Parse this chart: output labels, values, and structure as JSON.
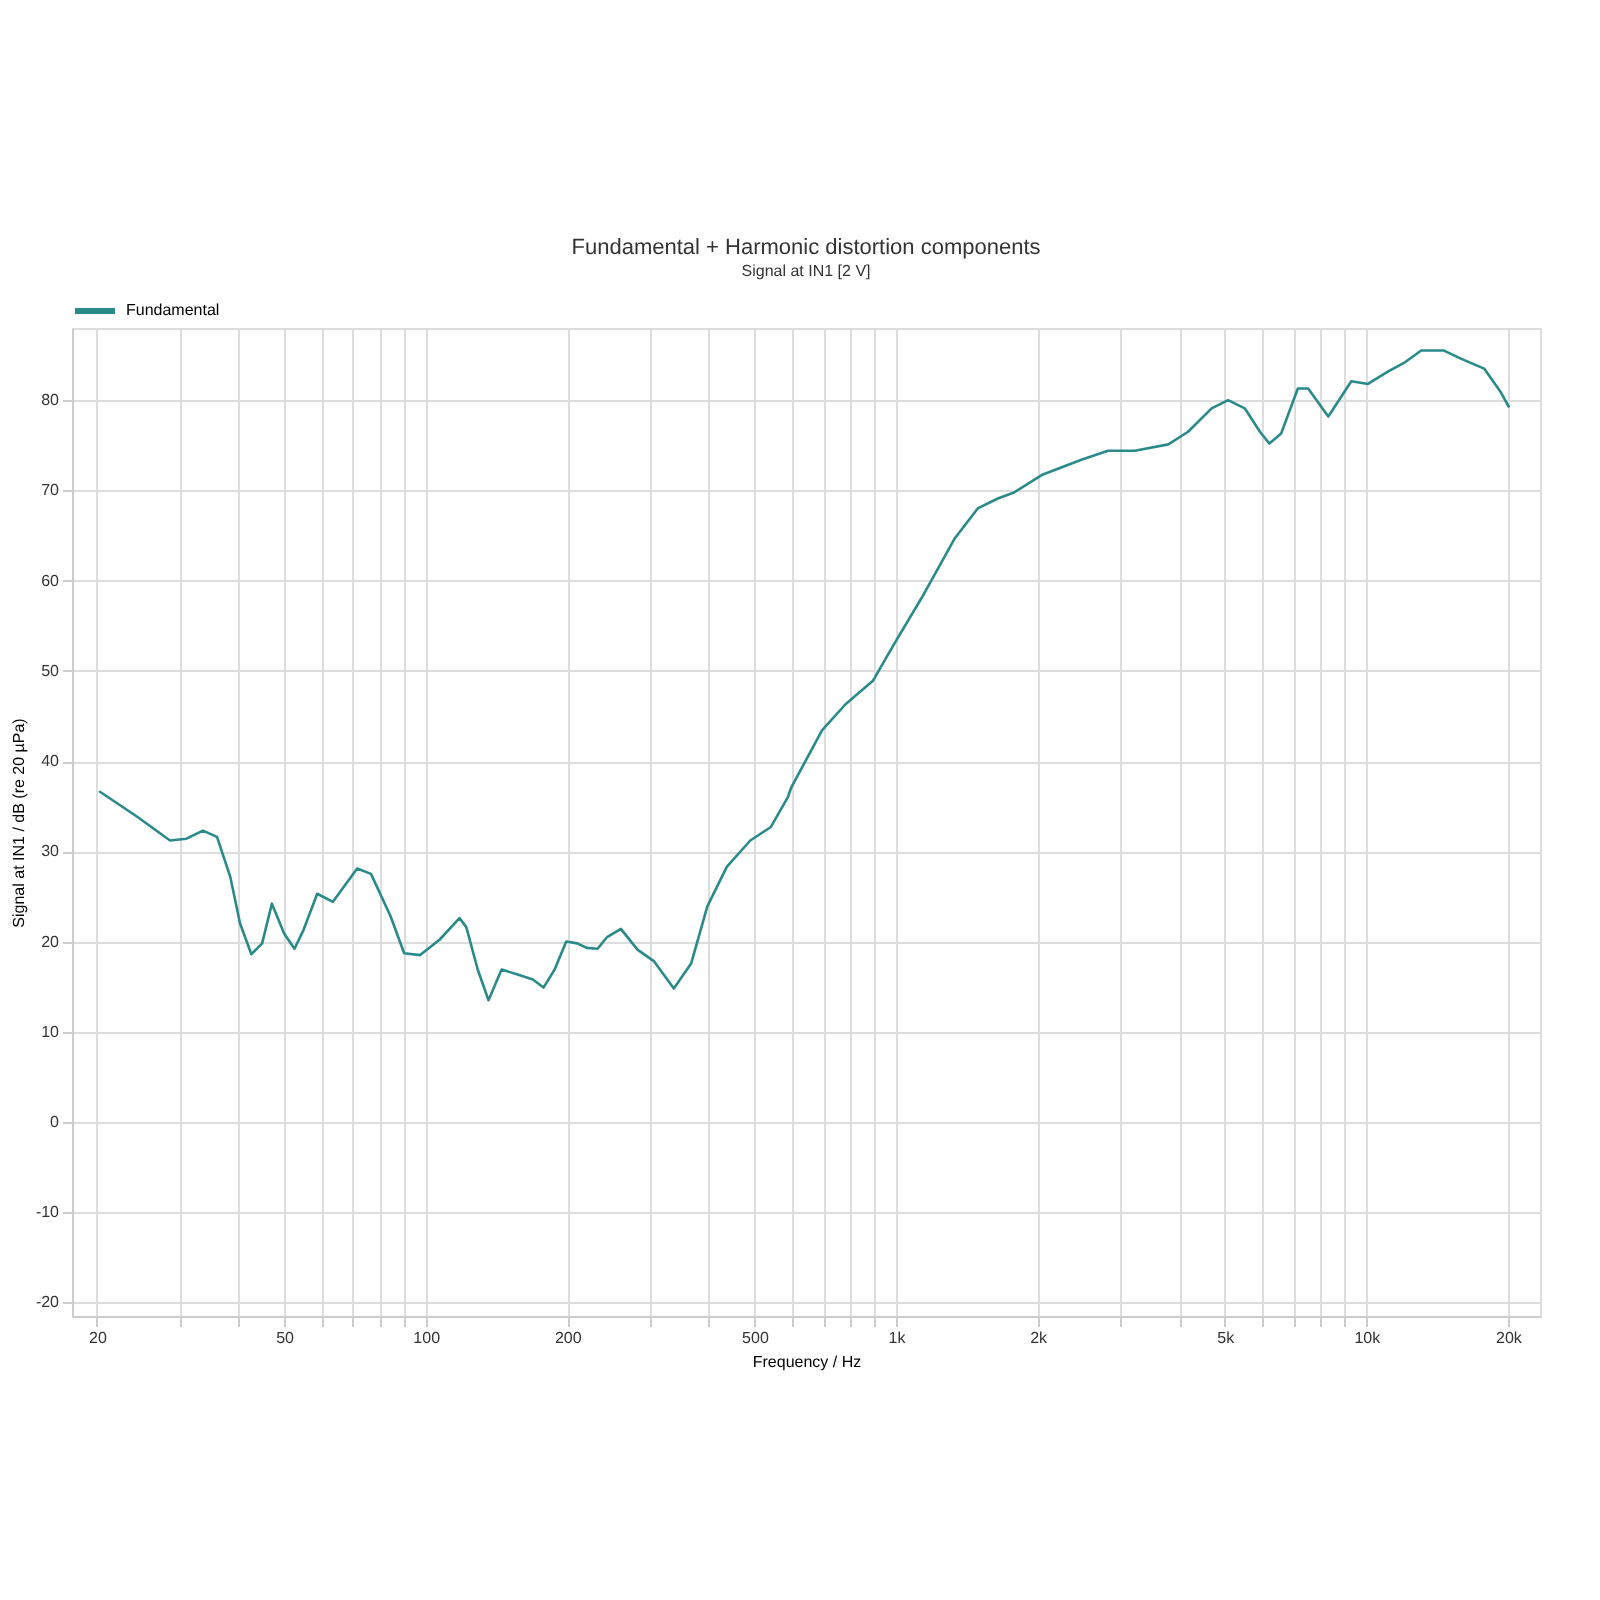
{
  "chart_data": {
    "type": "line",
    "title": "Fundamental + Harmonic distortion components",
    "subtitle": "Signal at IN1 [2 V]",
    "xlabel": "Frequency / Hz",
    "ylabel": "Signal at IN1 / dB (re 20 µPa)",
    "log": "x",
    "grid": true,
    "legend": "top left",
    "marker": "none",
    "line_style": "solid",
    "xlim": [
      17.7,
      23400
    ],
    "ylim": [
      -21.5,
      88
    ],
    "xticks": [
      20,
      {
        "value": 30,
        "label": null
      },
      {
        "value": 40,
        "label": null
      },
      50,
      {
        "value": 60,
        "label": null
      },
      {
        "value": 70,
        "label": null
      },
      {
        "value": 80,
        "label": null
      },
      {
        "value": 90,
        "label": null
      },
      100,
      200,
      {
        "value": 300,
        "label": null
      },
      {
        "value": 400,
        "label": null
      },
      500,
      {
        "value": 600,
        "label": null
      },
      {
        "value": 700,
        "label": null
      },
      {
        "value": 800,
        "label": null
      },
      {
        "value": 900,
        "label": null
      },
      {
        "value": 1000,
        "label": "1k"
      },
      {
        "value": 2000,
        "label": "2k"
      },
      {
        "value": 3000,
        "label": null
      },
      {
        "value": 4000,
        "label": null
      },
      {
        "value": 5000,
        "label": "5k"
      },
      {
        "value": 6000,
        "label": null
      },
      {
        "value": 7000,
        "label": null
      },
      {
        "value": 8000,
        "label": null
      },
      {
        "value": 9000,
        "label": null
      },
      {
        "value": 10000,
        "label": "10k"
      },
      {
        "value": 20000,
        "label": "20k"
      }
    ],
    "yticks": [
      -20,
      -10,
      0,
      10,
      20,
      30,
      40,
      50,
      60,
      70,
      80
    ],
    "series": [
      {
        "name": "Fundamental",
        "color": "#2a8a8a",
        "x": [
          20.3,
          24.4,
          28.6,
          31,
          33.6,
          36,
          38.4,
          40.3,
          42.6,
          44.9,
          47.1,
          50,
          52.6,
          55,
          58.8,
          63.5,
          71.5,
          76.5,
          84.2,
          90,
          97.3,
          107,
          118,
          122,
          129,
          136,
          145,
          158,
          169,
          178,
          188,
          199,
          210,
          220,
          232,
          243,
          260,
          282,
          306,
          337,
          367,
          397,
          437,
          490,
          542,
          589,
          599,
          696,
          781,
          893,
          989,
          1134,
          1334,
          1492,
          1646,
          1787,
          2040,
          2478,
          2823,
          3217,
          3793,
          4178,
          4688,
          5082,
          5514,
          5940,
          6220,
          6590,
          7150,
          7520,
          8300,
          9290,
          10080,
          11130,
          12080,
          13080,
          14630,
          15880,
          17800,
          19300,
          20070
        ],
        "values": [
          36.6,
          33.8,
          31.2,
          31.4,
          32.3,
          31.6,
          27.2,
          22.0,
          18.6,
          19.8,
          24.2,
          20.9,
          19.2,
          21.3,
          25.3,
          24.4,
          28.1,
          27.5,
          22.8,
          18.7,
          18.5,
          20.2,
          22.6,
          21.6,
          16.9,
          13.5,
          16.9,
          16.3,
          15.8,
          14.9,
          16.9,
          20.0,
          19.8,
          19.3,
          19.2,
          20.5,
          21.4,
          19.1,
          17.8,
          14.8,
          17.6,
          23.9,
          28.3,
          31.2,
          32.7,
          36.0,
          37.1,
          43.4,
          46.3,
          48.9,
          52.9,
          58.1,
          64.7,
          68.0,
          69.1,
          69.8,
          71.7,
          73.4,
          74.4,
          74.4,
          75.1,
          76.5,
          79.1,
          80.0,
          79.1,
          76.5,
          75.2,
          76.3,
          81.3,
          81.3,
          78.2,
          82.1,
          81.8,
          83.2,
          84.2,
          85.5,
          85.5,
          84.6,
          83.5,
          80.9,
          79.3
        ]
      }
    ]
  }
}
